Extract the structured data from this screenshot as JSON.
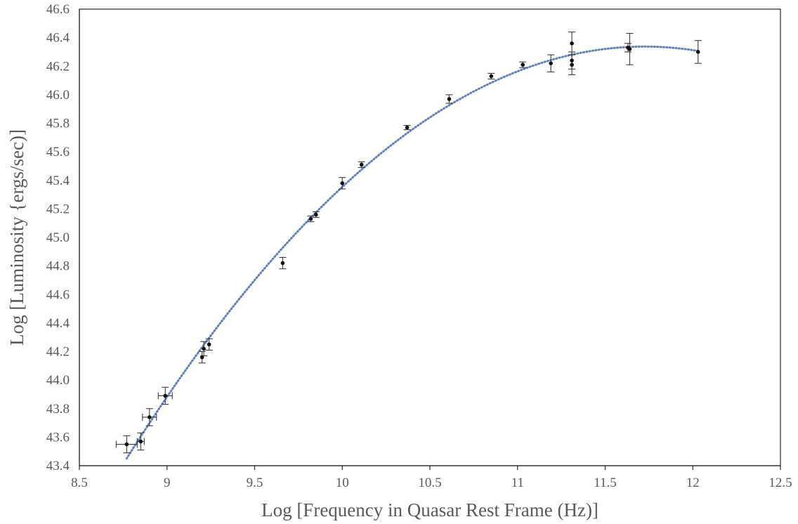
{
  "chart_data": {
    "type": "scatter",
    "title": "",
    "xlabel": "Log [Frequency in Quasar Rest Frame (Hz)]",
    "ylabel": "Log [Luminosity {ergs/sec)]",
    "xlim": [
      8.5,
      12.5
    ],
    "ylim": [
      43.4,
      46.6
    ],
    "x_ticks": [
      "8.5",
      "9",
      "9.5",
      "10",
      "10.5",
      "11",
      "11.5",
      "12",
      "12.5"
    ],
    "y_ticks": [
      "43.4",
      "43.6",
      "43.8",
      "44.0",
      "44.2",
      "44.4",
      "44.6",
      "44.8",
      "45.0",
      "45.2",
      "45.4",
      "45.6",
      "45.8",
      "46.0",
      "46.2",
      "46.4",
      "46.6"
    ],
    "grid": false,
    "legend": "none",
    "colors": {
      "points": "#111111",
      "error_bars": "#3a3a3a",
      "trendline": "#5b7fc4",
      "axes": "#262626",
      "text": "#595959"
    },
    "trendline": {
      "type": "polynomial",
      "style": "dotted",
      "x_range": [
        8.77,
        12.03
      ]
    },
    "points": [
      {
        "x": 8.77,
        "y": 43.55,
        "yerr": 0.06,
        "xerr": 0.06
      },
      {
        "x": 8.85,
        "y": 43.57,
        "yerr": 0.06,
        "xerr": 0.02
      },
      {
        "x": 8.9,
        "y": 43.74,
        "yerr": 0.06,
        "xerr": 0.04
      },
      {
        "x": 8.99,
        "y": 43.89,
        "yerr": 0.06,
        "xerr": 0.04
      },
      {
        "x": 9.2,
        "y": 44.16,
        "yerr": 0.04,
        "xerr": 0.0
      },
      {
        "x": 9.21,
        "y": 44.22,
        "yerr": 0.05,
        "xerr": 0.0
      },
      {
        "x": 9.24,
        "y": 44.25,
        "yerr": 0.04,
        "xerr": 0.0
      },
      {
        "x": 9.66,
        "y": 44.82,
        "yerr": 0.04,
        "xerr": 0.0
      },
      {
        "x": 9.82,
        "y": 45.13,
        "yerr": 0.02,
        "xerr": 0.0
      },
      {
        "x": 9.85,
        "y": 45.16,
        "yerr": 0.02,
        "xerr": 0.0
      },
      {
        "x": 10.0,
        "y": 45.38,
        "yerr": 0.04,
        "xerr": 0.0
      },
      {
        "x": 10.11,
        "y": 45.51,
        "yerr": 0.02,
        "xerr": 0.0
      },
      {
        "x": 10.37,
        "y": 45.77,
        "yerr": 0.015,
        "xerr": 0.0
      },
      {
        "x": 10.61,
        "y": 45.97,
        "yerr": 0.03,
        "xerr": 0.0
      },
      {
        "x": 10.85,
        "y": 46.13,
        "yerr": 0.02,
        "xerr": 0.0
      },
      {
        "x": 11.03,
        "y": 46.21,
        "yerr": 0.02,
        "xerr": 0.0
      },
      {
        "x": 11.19,
        "y": 46.22,
        "yerr": 0.06,
        "xerr": 0.0
      },
      {
        "x": 11.31,
        "y": 46.36,
        "yerr": 0.08,
        "xerr": 0.0
      },
      {
        "x": 11.31,
        "y": 46.24,
        "yerr": 0.06,
        "xerr": 0.0
      },
      {
        "x": 11.31,
        "y": 46.21,
        "yerr": 0.07,
        "xerr": 0.0
      },
      {
        "x": 11.63,
        "y": 46.33,
        "yerr": 0.03,
        "xerr": 0.0
      },
      {
        "x": 11.64,
        "y": 46.32,
        "yerr": 0.11,
        "xerr": 0.0
      },
      {
        "x": 12.03,
        "y": 46.3,
        "yerr": 0.08,
        "xerr": 0.0
      }
    ]
  }
}
